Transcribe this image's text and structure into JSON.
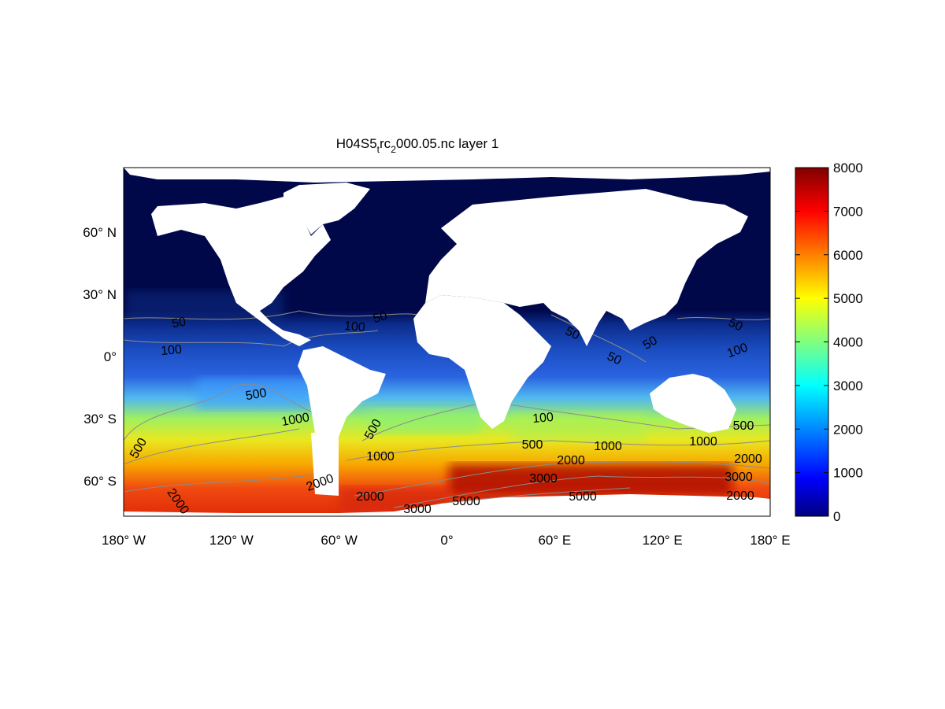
{
  "title": {
    "part1": "H04S5",
    "sub1": "t",
    "part2": "rc",
    "sub2": "2",
    "part3": "000.05.nc layer 1"
  },
  "chart_data": {
    "type": "heatmap",
    "title": "H04S5_trc_2000.05.nc layer 1",
    "projection": "equirectangular",
    "xlim": [
      -180,
      180
    ],
    "ylim": [
      -78,
      90
    ],
    "xticks": [
      "180° W",
      "120° W",
      "60° W",
      "0°",
      "60° E",
      "120° E",
      "180° E"
    ],
    "yticks": [
      "60° N",
      "30° N",
      "0°",
      "30° S",
      "60° S"
    ],
    "colorbar": {
      "colormap": "jet",
      "range": [
        0,
        8000
      ],
      "ticks": [
        "0",
        "1000",
        "2000",
        "3000",
        "4000",
        "5000",
        "6000",
        "7000",
        "8000"
      ]
    },
    "contour_levels": [
      50,
      100,
      500,
      1000,
      2000,
      3000,
      5000
    ],
    "contour_labels": [
      "50",
      "100",
      "100",
      "50",
      "50",
      "50",
      "50",
      "50",
      "100",
      "500",
      "1000",
      "500",
      "500",
      "1000",
      "100",
      "500",
      "2000",
      "1000",
      "500",
      "1000",
      "2000",
      "3000",
      "3000",
      "2000",
      "2000",
      "2000",
      "2000",
      "3000",
      "5000",
      "5000"
    ],
    "land_color": "#ffffff",
    "contour_color": "#8c8c8c"
  }
}
